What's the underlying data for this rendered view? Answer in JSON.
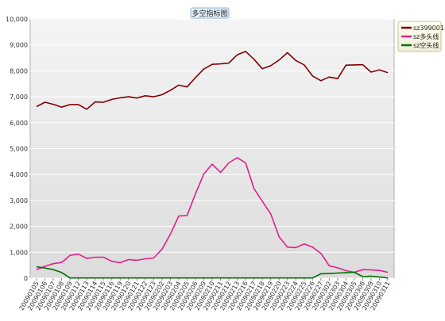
{
  "chart_data": {
    "type": "line",
    "title": "多空指标图",
    "ylim": [
      0,
      10000
    ],
    "yticks": [
      "0",
      "1,000",
      "2,000",
      "3,000",
      "4,000",
      "5,000",
      "6,000",
      "7,000",
      "8,000",
      "9,000",
      "10,000"
    ],
    "grid": true,
    "legend_position": "top-right",
    "x": [
      "20090105",
      "20090106",
      "20090107",
      "20090108",
      "20090109",
      "20090112",
      "20090113",
      "20090114",
      "20090115",
      "20090116",
      "20090119",
      "20090120",
      "20090121",
      "20090122",
      "20090123",
      "20090202",
      "20090203",
      "20090204",
      "20090205",
      "20090206",
      "20090209",
      "20090210",
      "20090211",
      "20090212",
      "20090213",
      "20090216",
      "20090217",
      "20090218",
      "20090219",
      "20090220",
      "20090223",
      "20090224",
      "20090225",
      "20090226",
      "20090227",
      "20090302",
      "20090303",
      "20090304",
      "20090305",
      "20090306",
      "20090309",
      "20090310",
      "20090311"
    ],
    "series": [
      {
        "name": "sz399001",
        "color": "#800000",
        "values": [
          6620,
          6790,
          6710,
          6600,
          6700,
          6700,
          6520,
          6800,
          6790,
          6900,
          6960,
          7000,
          6950,
          7040,
          7000,
          7080,
          7250,
          7450,
          7380,
          7740,
          8070,
          8250,
          8270,
          8300,
          8620,
          8750,
          8450,
          8080,
          8200,
          8420,
          8700,
          8400,
          8230,
          7800,
          7620,
          7760,
          7700,
          8220,
          8230,
          8240,
          7950,
          8040,
          7930
        ]
      },
      {
        "name": "sz多头线",
        "color": "#e0208c",
        "values": [
          330,
          460,
          560,
          610,
          880,
          930,
          760,
          810,
          810,
          650,
          600,
          720,
          690,
          750,
          780,
          1120,
          1700,
          2400,
          2420,
          3260,
          4020,
          4400,
          4080,
          4450,
          4650,
          4450,
          3460,
          2970,
          2480,
          1600,
          1200,
          1180,
          1320,
          1200,
          960,
          480,
          400,
          290,
          230,
          330,
          320,
          300,
          230
        ]
      },
      {
        "name": "sz空头线",
        "color": "#007000",
        "values": [
          440,
          390,
          330,
          220,
          10,
          10,
          10,
          10,
          10,
          10,
          10,
          10,
          10,
          10,
          10,
          10,
          10,
          10,
          10,
          10,
          10,
          10,
          10,
          10,
          10,
          10,
          10,
          10,
          10,
          10,
          10,
          10,
          10,
          10,
          170,
          180,
          200,
          210,
          230,
          60,
          80,
          50,
          10
        ]
      }
    ]
  }
}
